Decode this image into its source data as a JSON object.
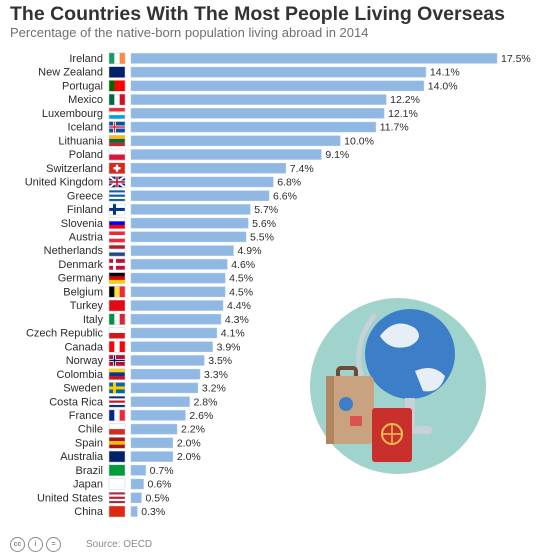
{
  "title": "The Countries With The Most People Living Overseas",
  "subtitle": "Percentage of the native-born population living abroad in 2014",
  "source": "Source: OECD",
  "license_icons": [
    "cc-icon",
    "by-icon",
    "nd-icon"
  ],
  "colors": {
    "bar": "#91b8e2",
    "bar_stroke": "#a9c8ea",
    "circle": "#9fd3cc"
  },
  "chart_data": {
    "type": "bar",
    "orientation": "horizontal",
    "title": "The Countries With The Most People Living Overseas",
    "subtitle": "Percentage of the native-born population living abroad in 2014",
    "categories": [
      "Ireland",
      "New Zealand",
      "Portugal",
      "Mexico",
      "Luxembourg",
      "Iceland",
      "Lithuania",
      "Poland",
      "Switzerland",
      "United Kingdom",
      "Greece",
      "Finland",
      "Slovenia",
      "Austria",
      "Netherlands",
      "Denmark",
      "Germany",
      "Belgium",
      "Turkey",
      "Italy",
      "Czech Republic",
      "Canada",
      "Norway",
      "Colombia",
      "Sweden",
      "Costa Rica",
      "France",
      "Chile",
      "Spain",
      "Australia",
      "Brazil",
      "Japan",
      "United States",
      "China"
    ],
    "values": [
      17.5,
      14.1,
      14.0,
      12.2,
      12.1,
      11.7,
      10.0,
      9.1,
      7.4,
      6.8,
      6.6,
      5.7,
      5.6,
      5.5,
      4.9,
      4.6,
      4.5,
      4.5,
      4.4,
      4.3,
      4.1,
      3.9,
      3.5,
      3.3,
      3.2,
      2.8,
      2.6,
      2.2,
      2.0,
      2.0,
      0.7,
      0.6,
      0.5,
      0.3
    ],
    "value_labels": [
      "17.5%",
      "14.1%",
      "14.0%",
      "12.2%",
      "12.1%",
      "11.7%",
      "10.0%",
      "9.1%",
      "7.4%",
      "6.8%",
      "6.6%",
      "5.7%",
      "5.6%",
      "5.5%",
      "4.9%",
      "4.6%",
      "4.5%",
      "4.5%",
      "4.4%",
      "4.3%",
      "4.1%",
      "3.9%",
      "3.5%",
      "3.3%",
      "3.2%",
      "2.8%",
      "2.6%",
      "2.2%",
      "2.0%",
      "2.0%",
      "0.7%",
      "0.6%",
      "0.5%",
      "0.3%"
    ],
    "xlim": [
      0,
      17.5
    ],
    "grid": false,
    "legend": "none"
  }
}
